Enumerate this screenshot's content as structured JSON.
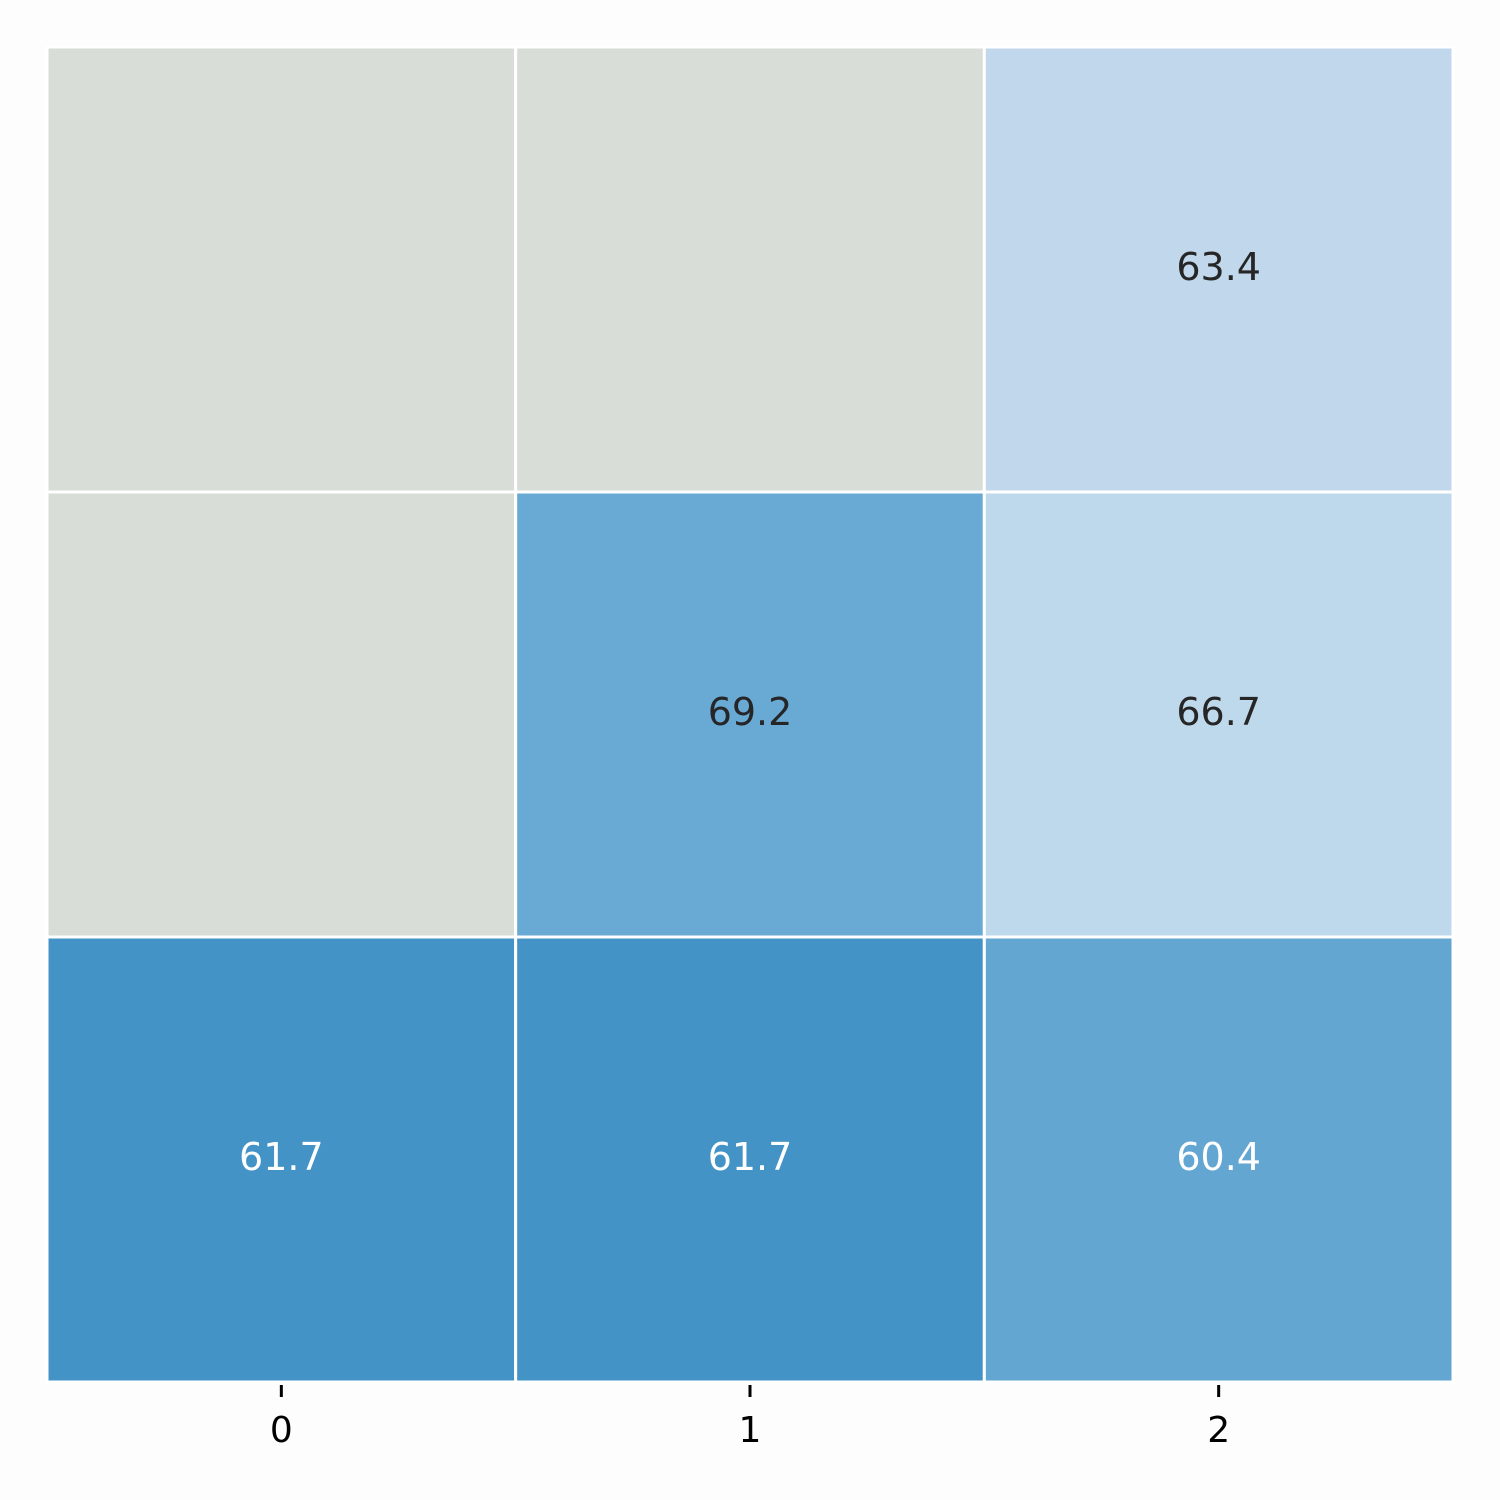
{
  "chart_data": {
    "type": "heatmap",
    "categories": [
      "0",
      "1",
      "2"
    ],
    "values": [
      [
        null,
        null,
        63.4
      ],
      [
        null,
        69.2,
        66.7
      ],
      [
        61.7,
        61.7,
        60.4
      ]
    ],
    "colors": [
      [
        null,
        null,
        "#c0d7ec"
      ],
      [
        null,
        "#69aad5",
        "#bfd9ec"
      ],
      [
        "#4493c6",
        "#4493c6",
        "#62a6d1"
      ]
    ],
    "na_color": "#d8ddd8"
  }
}
